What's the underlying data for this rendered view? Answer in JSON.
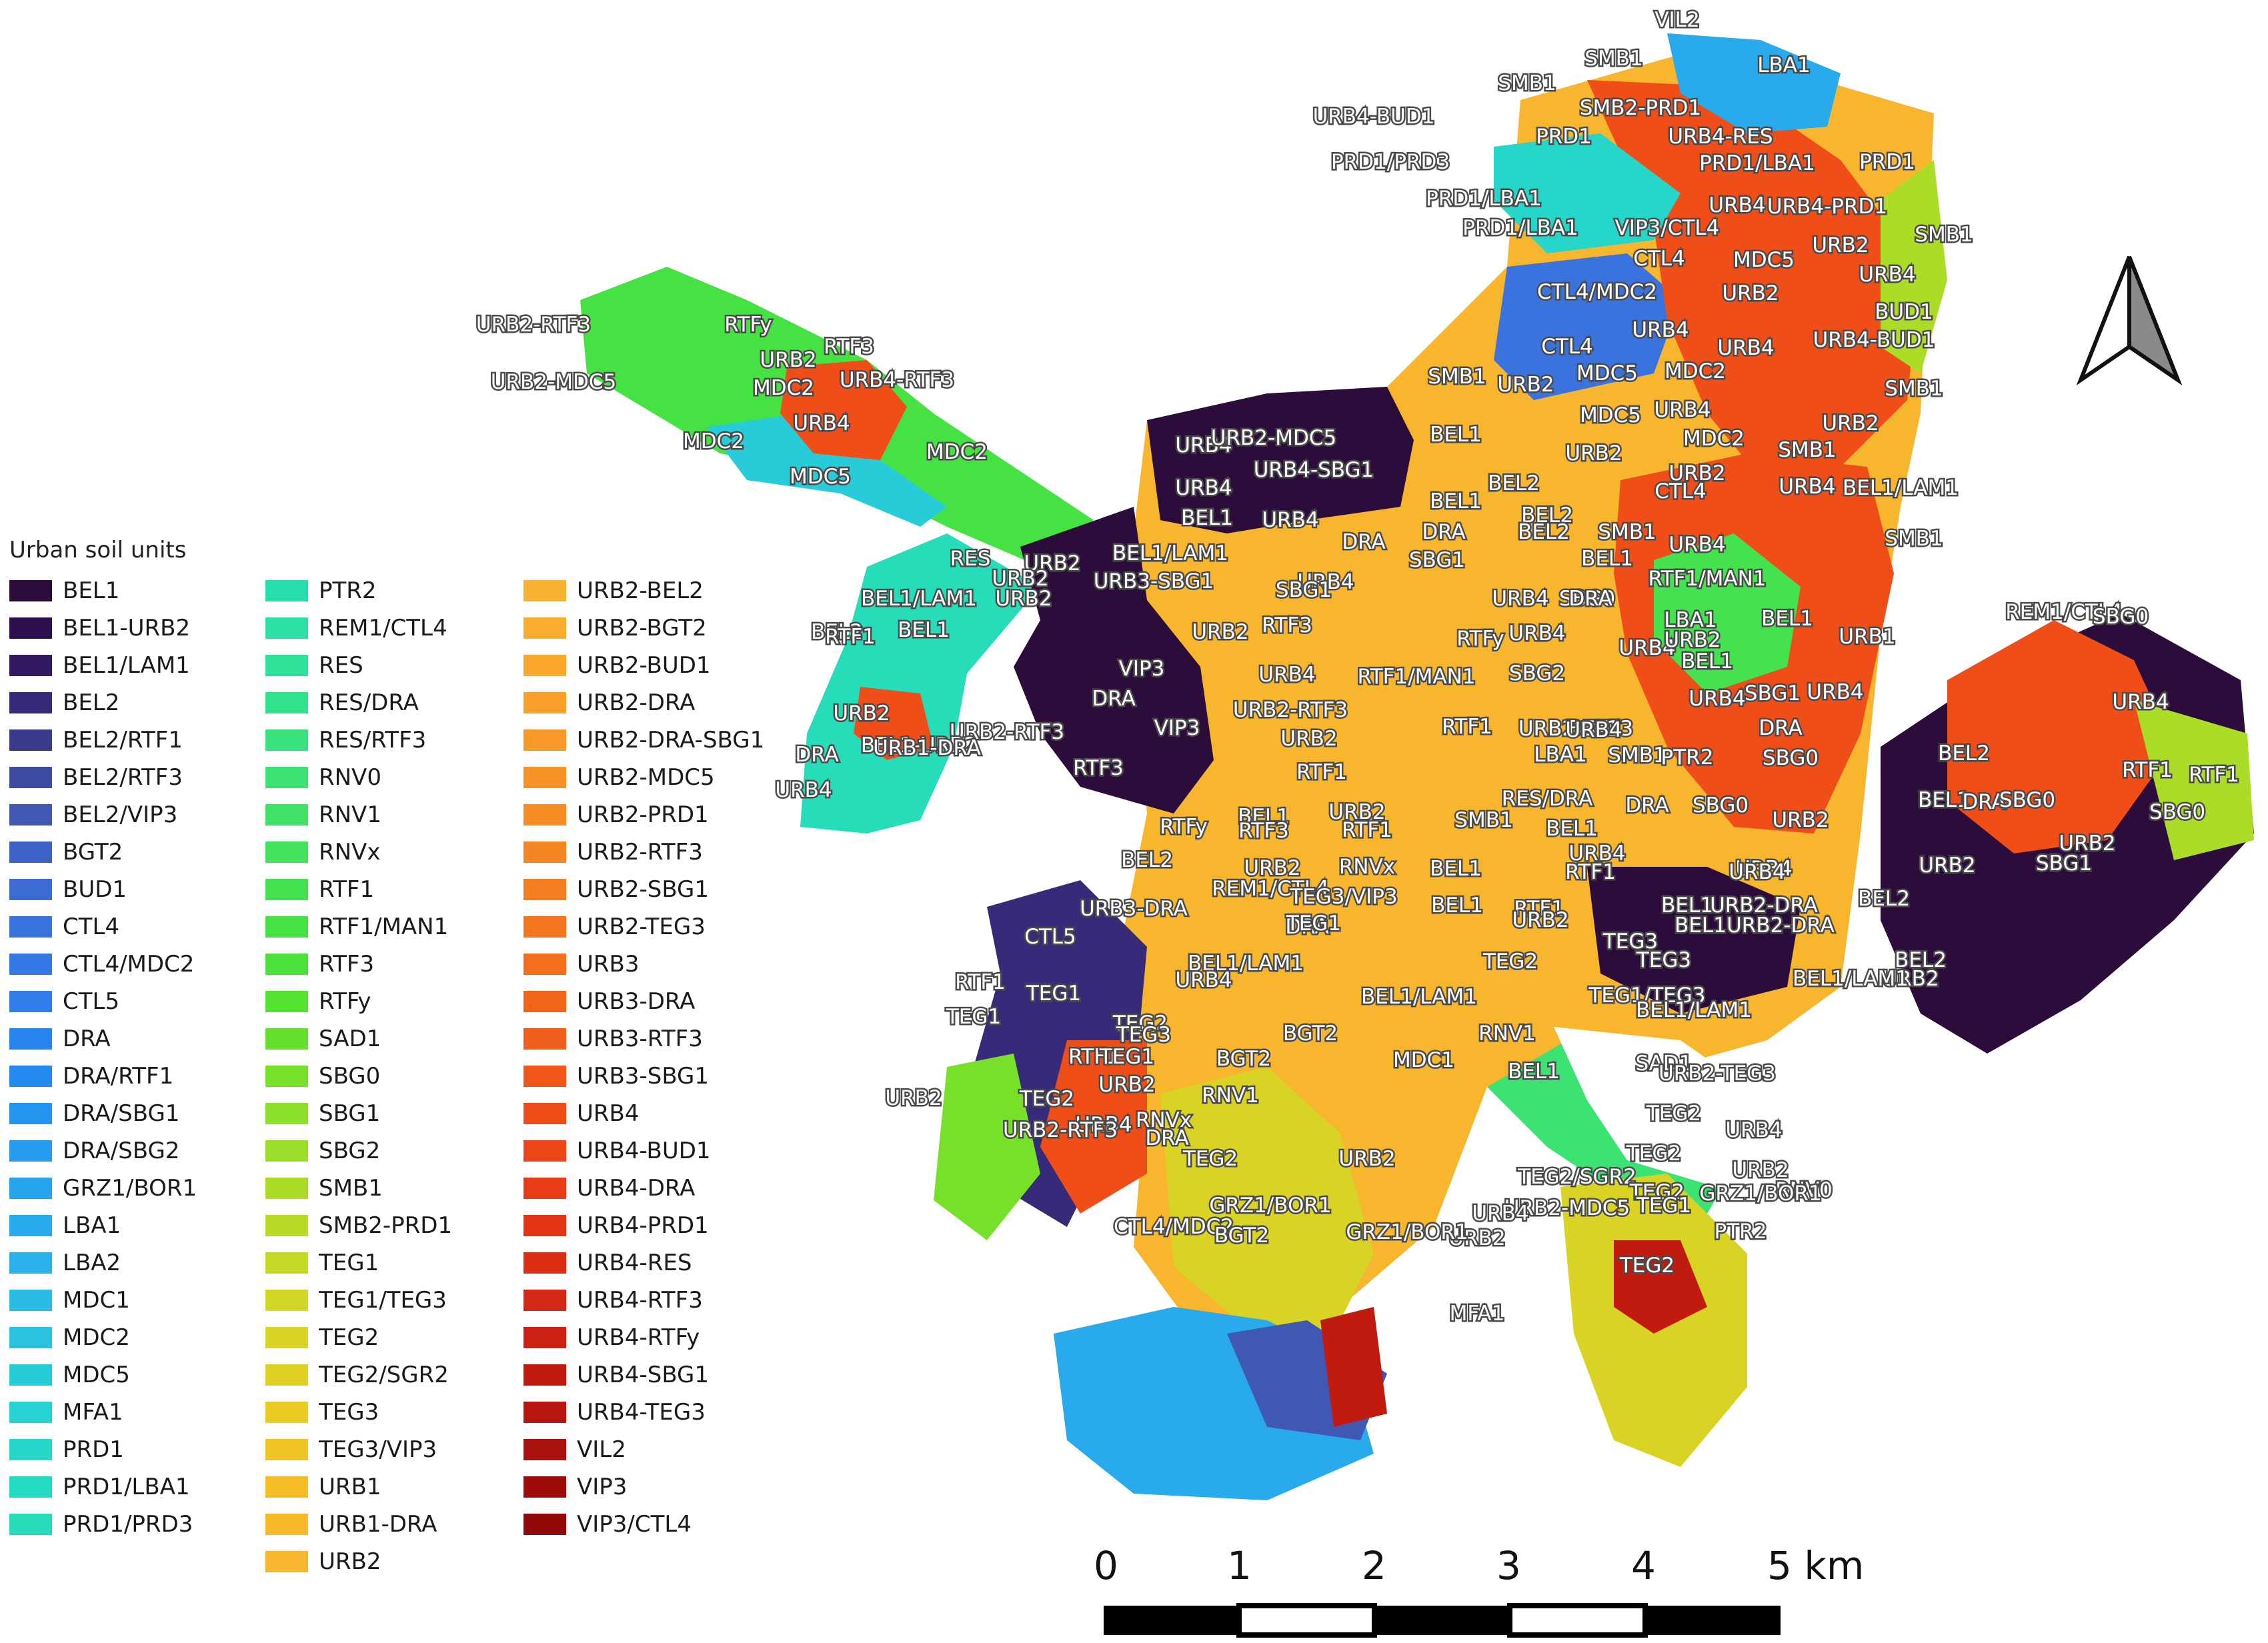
{
  "legend": {
    "title": "Urban soil units",
    "columns": [
      [
        {
          "label": "BEL1",
          "color": "#2b0c3a"
        },
        {
          "label": "BEL1-URB2",
          "color": "#2e1050"
        },
        {
          "label": "BEL1/LAM1",
          "color": "#321a63"
        },
        {
          "label": "BEL2",
          "color": "#362a79"
        },
        {
          "label": "BEL2/RTF1",
          "color": "#3a3a8d"
        },
        {
          "label": "BEL2/RTF3",
          "color": "#3c4aa0"
        },
        {
          "label": "BEL2/VIP3",
          "color": "#3e58b4"
        },
        {
          "label": "BGT2",
          "color": "#3e63c6"
        },
        {
          "label": "BUD1",
          "color": "#3c6cd2"
        },
        {
          "label": "CTL4",
          "color": "#3a73dd"
        },
        {
          "label": "CTL4/MDC2",
          "color": "#3578e5"
        },
        {
          "label": "CTL5",
          "color": "#2f7eea"
        },
        {
          "label": "DRA",
          "color": "#2784ee"
        },
        {
          "label": "DRA/RTF1",
          "color": "#238bf0"
        },
        {
          "label": "DRA/SBG1",
          "color": "#2394f0"
        },
        {
          "label": "DRA/SBG2",
          "color": "#259cf0"
        },
        {
          "label": "GRZ1/BOR1",
          "color": "#27a4ee"
        },
        {
          "label": "LBA1",
          "color": "#29aaec"
        },
        {
          "label": "LBA2",
          "color": "#2bb2ea"
        },
        {
          "label": "MDC1",
          "color": "#2cbbe6"
        },
        {
          "label": "MDC2",
          "color": "#2ac4e0"
        },
        {
          "label": "MDC5",
          "color": "#28ccd9"
        },
        {
          "label": "MFA1",
          "color": "#27d2d2"
        },
        {
          "label": "PRD1",
          "color": "#26d6c9"
        },
        {
          "label": "PRD1/LBA1",
          "color": "#25dac2"
        },
        {
          "label": "PRD1/PRD3",
          "color": "#27ddb9"
        }
      ],
      [
        {
          "label": "PTR2",
          "color": "#29deae"
        },
        {
          "label": "REM1/CTL4",
          "color": "#2ce0a4"
        },
        {
          "label": "RES",
          "color": "#2fe199"
        },
        {
          "label": "RES/DRA",
          "color": "#33e18c"
        },
        {
          "label": "RES/RTF3",
          "color": "#38e27f"
        },
        {
          "label": "RNV0",
          "color": "#3ce272"
        },
        {
          "label": "RNV1",
          "color": "#3fe267"
        },
        {
          "label": "RNVx",
          "color": "#42e25b"
        },
        {
          "label": "RTF1",
          "color": "#44e24f"
        },
        {
          "label": "RTF1/MAN1",
          "color": "#46e244"
        },
        {
          "label": "RTF3",
          "color": "#4ae23a"
        },
        {
          "label": "RTFy",
          "color": "#55e231"
        },
        {
          "label": "SAD1",
          "color": "#65e12d"
        },
        {
          "label": "SBG0",
          "color": "#78e02b"
        },
        {
          "label": "SBG1",
          "color": "#8adf2a"
        },
        {
          "label": "SBG2",
          "color": "#9bde29"
        },
        {
          "label": "SMB1",
          "color": "#aadc28"
        },
        {
          "label": "SMB2-PRD1",
          "color": "#b8da27"
        },
        {
          "label": "TEG1",
          "color": "#c4d826"
        },
        {
          "label": "TEG1/TEG3",
          "color": "#cfd625"
        },
        {
          "label": "TEG2",
          "color": "#d8d324"
        },
        {
          "label": "TEG2/SGR2",
          "color": "#e0cf23"
        },
        {
          "label": "TEG3",
          "color": "#e8ca22"
        },
        {
          "label": "TEG3/VIP3",
          "color": "#efc322"
        },
        {
          "label": "URB1",
          "color": "#f4bd25"
        },
        {
          "label": "URB1-DRA",
          "color": "#f7b82a"
        },
        {
          "label": "URB2",
          "color": "#f8b52e"
        }
      ],
      [
        {
          "label": "URB2-BEL2",
          "color": "#f9b233"
        },
        {
          "label": "URB2-BGT2",
          "color": "#f9ac30"
        },
        {
          "label": "URB2-BUD1",
          "color": "#f9a62d"
        },
        {
          "label": "URB2-DRA",
          "color": "#f9a02b"
        },
        {
          "label": "URB2-DRA-SBG1",
          "color": "#f89a29"
        },
        {
          "label": "URB2-MDC5",
          "color": "#f79327"
        },
        {
          "label": "URB2-PRD1",
          "color": "#f78c25"
        },
        {
          "label": "URB2-RTF3",
          "color": "#f68523"
        },
        {
          "label": "URB2-SBG1",
          "color": "#f57e21"
        },
        {
          "label": "URB2-TEG3",
          "color": "#f4761f"
        },
        {
          "label": "URB3",
          "color": "#f36e1d"
        },
        {
          "label": "URB3-DRA",
          "color": "#f2661c"
        },
        {
          "label": "URB3-RTF3",
          "color": "#f15e1b"
        },
        {
          "label": "URB3-SBG1",
          "color": "#f0561a"
        },
        {
          "label": "URB4",
          "color": "#ef4e19"
        },
        {
          "label": "URB4-BUD1",
          "color": "#ec4518"
        },
        {
          "label": "URB4-DRA",
          "color": "#e83c17"
        },
        {
          "label": "URB4-PRD1",
          "color": "#e23516"
        },
        {
          "label": "URB4-RES",
          "color": "#dc2e15"
        },
        {
          "label": "URB4-RTF3",
          "color": "#d42714"
        },
        {
          "label": "URB4-RTFy",
          "color": "#cb2112"
        },
        {
          "label": "URB4-SBG1",
          "color": "#c11b10"
        },
        {
          "label": "URB4-TEG3",
          "color": "#b6160e"
        },
        {
          "label": "VIL2",
          "color": "#ab110c"
        },
        {
          "label": "VIP3",
          "color": "#9e0c0a"
        },
        {
          "label": "VIP3/CTL4",
          "color": "#900808"
        }
      ]
    ]
  },
  "map": {
    "labels": [
      "VIL2",
      "LBA1",
      "SMB1",
      "SMB1",
      "SMB2-PRD1",
      "URB4-BUD1",
      "PRD1",
      "URB4-RES",
      "PRD1/PRD3",
      "PRD1/LBA1",
      "PRD1",
      "PRD1/LBA1",
      "URB4",
      "URB4-PRD1",
      "PRD1/LBA1",
      "VIP3/CTL4",
      "SMB1",
      "URB2",
      "CTL4",
      "MDC5",
      "URB4",
      "CTL4/MDC2",
      "URB2",
      "BUD1",
      "URB4",
      "URB4",
      "URB4-BUD1",
      "CTL4",
      "SMB1",
      "URB2",
      "MDC5",
      "MDC2",
      "SMB1",
      "URB2-RTF3",
      "RTFy",
      "URB2",
      "RTF3",
      "URB2-MDC5",
      "MDC2",
      "URB4-RTF3",
      "URB4",
      "MDC2",
      "MDC2",
      "MDC5",
      "URB4",
      "URB2-MDC5",
      "BEL1",
      "MDC5",
      "URB4",
      "URB2",
      "URB4-SBG1",
      "MDC2",
      "SMB1",
      "URB4",
      "URB2",
      "BEL1/LAM1",
      "URB2",
      "SMB1",
      "URB4",
      "BEL2",
      "CTL4",
      "BEL1",
      "URB4",
      "BEL1",
      "BEL2",
      "URB4",
      "BEL1/LAM1",
      "DRA",
      "DRA",
      "BEL2",
      "SMB1",
      "RES",
      "URB2",
      "SBG1",
      "BEL1",
      "URB3-SBG1",
      "URB4",
      "RTF1/MAN1",
      "URB2",
      "SBG0",
      "SBG1",
      "URB4",
      "DRA",
      "URB2",
      "BEL1/LAM1",
      "BEL2",
      "BEL1",
      "RTF3",
      "URB2",
      "URB4",
      "LBA1",
      "BEL1",
      "REM1/CTL4",
      "SBG0",
      "RTF1",
      "RTFy",
      "URB4",
      "URB1",
      "URB2",
      "URB4",
      "RTF1/MAN1",
      "SBG2",
      "BEL1",
      "VIP3",
      "DRA",
      "URB2",
      "URB2-RTF3",
      "URB2-RTF3",
      "URB4",
      "SBG1",
      "URB4",
      "RTF1",
      "URB2-RTF3",
      "BEL1",
      "DRA",
      "URB4",
      "VIP3",
      "URB2",
      "URB4",
      "BEL1-URB2",
      "URB1-DRA",
      "DRA",
      "BEL2",
      "RTF3",
      "RTF1",
      "LBA1",
      "SMB1",
      "PTR2",
      "SBG0",
      "RTF1",
      "RTF1",
      "URB4",
      "RES/DRA",
      "DRA",
      "SBG0",
      "SBG0",
      "RTFy",
      "BEL1",
      "URB2",
      "SMB1",
      "BEL1",
      "URB2",
      "BEL1",
      "DRA",
      "SBG0",
      "BEL2",
      "RTF3",
      "RTF1",
      "URB4",
      "URB2",
      "SBG1",
      "URB2",
      "RNVx",
      "BEL1",
      "RTF1",
      "URB4",
      "URB4",
      "REM1/CTL4",
      "TEG3/VIP3",
      "BEL1",
      "RTF1",
      "BEL1",
      "URB2-DRA",
      "URB3-DRA",
      "DRA",
      "URB2",
      "BEL1",
      "BEL2",
      "CTL5",
      "TEG1",
      "URB2",
      "TEG3",
      "URB2-DRA",
      "BEL2",
      "BEL1/LAM1",
      "TEG3",
      "TEG1",
      "TEG2",
      "TEG1/TEG3",
      "URB2",
      "BEL1/LAM1",
      "BEL1/LAM1",
      "RTF1",
      "URB4",
      "BEL1/LAM1",
      "TEG1",
      "TEG2",
      "RNV1",
      "BGT2",
      "TEG3",
      "SAD1",
      "RTF1",
      "BGT2",
      "TEG1",
      "RNVx",
      "MDC1",
      "BEL1",
      "URB4",
      "TEG2",
      "URB2",
      "URB2",
      "RNV1",
      "URB2-TEG3",
      "URB2-RTF3",
      "DRA",
      "TEG2",
      "TEG2",
      "URB2",
      "URB4",
      "TEG2",
      "TEG2/SGR2",
      "URB2",
      "RNV0",
      "GRZ1/BOR1",
      "TEG2",
      "URB2-MDC5",
      "GRZ1/BOR1",
      "URB2",
      "CTL4/MDC2",
      "URB4",
      "TEG1",
      "PTR2",
      "GRZ1/BOR1",
      "BGT2",
      "TEG2",
      "MFA1"
    ],
    "north_arrow": "north-arrow-icon",
    "scale_bar": {
      "ticks": [
        "0",
        "1",
        "2",
        "3",
        "4",
        "5 km"
      ]
    }
  }
}
